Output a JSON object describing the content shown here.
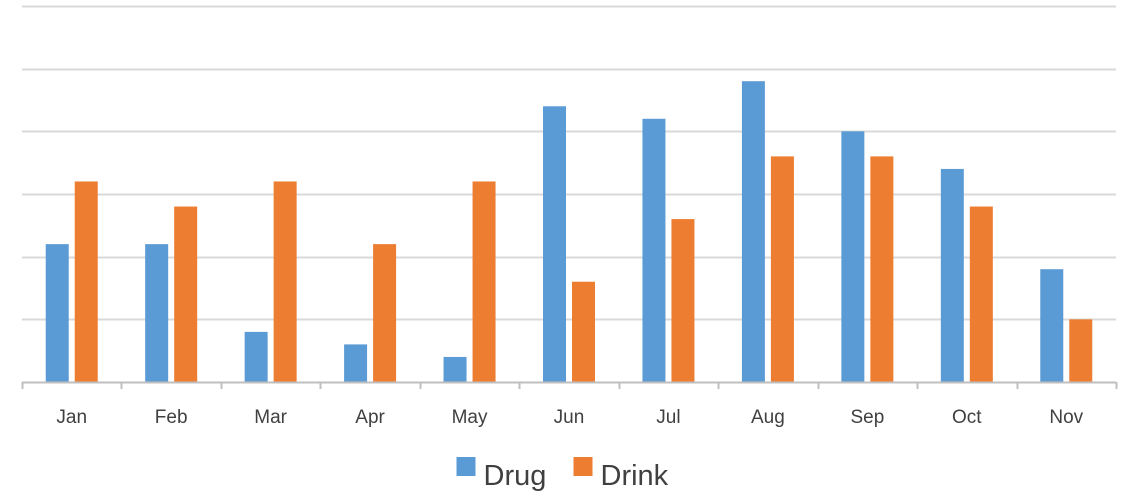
{
  "chart_data": {
    "type": "bar",
    "title": "",
    "xlabel": "",
    "ylabel": "",
    "categories": [
      "Jan",
      "Feb",
      "Mar",
      "Apr",
      "May",
      "Jun",
      "Jul",
      "Aug",
      "Sep",
      "Oct",
      "Nov"
    ],
    "series": [
      {
        "name": "Drug",
        "color": "#5B9BD5",
        "values": [
          11,
          11,
          4,
          3,
          2,
          22,
          21,
          24,
          20,
          17,
          9
        ]
      },
      {
        "name": "Drink",
        "color": "#ED7D31",
        "values": [
          16,
          14,
          16,
          11,
          16,
          8,
          13,
          18,
          18,
          14,
          5
        ]
      }
    ],
    "ylim": [
      0,
      30
    ],
    "y_gridline_step": 5,
    "y_tick_labels_shown": false,
    "grid": true,
    "legend": "bottom-center"
  }
}
